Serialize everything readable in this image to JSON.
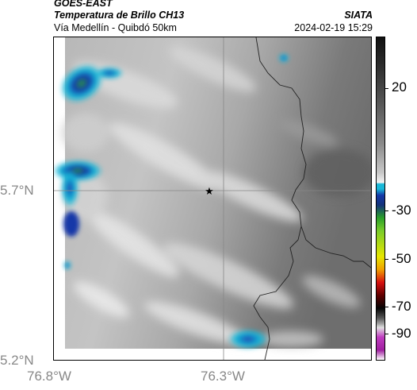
{
  "header": {
    "title_line1": "GOES-EAST",
    "title_line2": "Temperatura de Brillo CH13",
    "subtitle": "Vía Medellín - Quibdó 50km",
    "organization": "SIATA",
    "datetime": "2024-02-19 15:29"
  },
  "map": {
    "lat_labels": [
      "5.7°N",
      "5.2°N"
    ],
    "lon_labels": [
      "76.8°W",
      "76.3°W"
    ],
    "marker_icon": "star-icon"
  },
  "colorbar": {
    "ticks": [
      "20",
      "-30",
      "-50",
      "-70",
      "-90"
    ],
    "colors": {
      "warm_low": "#f2f2f2",
      "warm_high": "#111111",
      "cyan": "#19b8d8",
      "blue": "#1438a8",
      "green": "#2aa02a",
      "yellow": "#e6e600",
      "red": "#d81010",
      "black": "#050505",
      "magenta": "#c03cc0"
    }
  }
}
